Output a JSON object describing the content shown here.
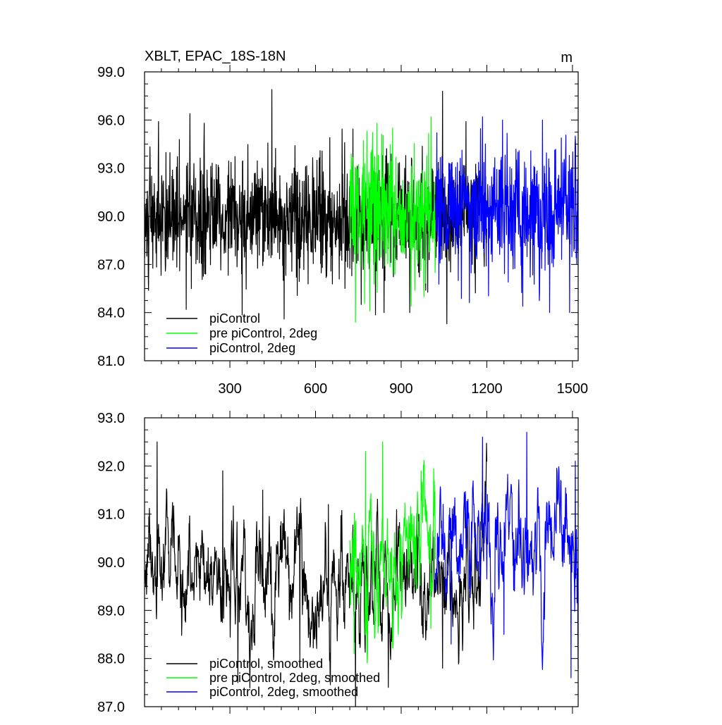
{
  "chart_data": [
    {
      "type": "line",
      "title": "XBLT, EPAC_18S-18N",
      "units": "m",
      "xlabel": "",
      "ylabel": "",
      "xlim": [
        1,
        1520
      ],
      "ylim": [
        81.0,
        99.0
      ],
      "xticks": [
        300,
        600,
        900,
        1200,
        1500
      ],
      "xtick_labels": [
        "300",
        "600",
        "900",
        "1200",
        "1500"
      ],
      "yticks": [
        81.0,
        84.0,
        87.0,
        90.0,
        93.0,
        96.0,
        99.0
      ],
      "ytick_labels": [
        "81.0",
        "84.0",
        "87.0",
        "90.0",
        "93.0",
        "96.0",
        "99.0"
      ],
      "grid": false,
      "legend_position": "bottom-left",
      "series": [
        {
          "name": "piControl",
          "color": "#000000",
          "x_range": [
            1,
            1200
          ],
          "mean": 89.9,
          "std": 1.8,
          "peaks": [
            [
              50,
              95.9
            ],
            [
              160,
              96.4
            ],
            [
              210,
              95.8
            ],
            [
              447,
              97.9
            ],
            [
              1045,
              97.8
            ],
            [
              650,
              94.9
            ]
          ],
          "troughs": [
            [
              147,
              84.2
            ],
            [
              490,
              83.6
            ],
            [
              1060,
              83.3
            ],
            [
              840,
              84.0
            ],
            [
              930,
              84.0
            ],
            [
              760,
              84.5
            ]
          ]
        },
        {
          "name": "pre piControl, 2deg",
          "color": "#00ff00",
          "x_range": [
            720,
            1020
          ],
          "mean": 90.1,
          "std": 2.0,
          "peaks": [
            [
              815,
              95.8
            ],
            [
              1005,
              96.2
            ],
            [
              870,
              95.5
            ],
            [
              780,
              95.3
            ]
          ],
          "troughs": [
            [
              740,
              83.4
            ],
            [
              790,
              84.1
            ],
            [
              935,
              84.4
            ],
            [
              980,
              85.0
            ]
          ]
        },
        {
          "name": "piControl, 2deg",
          "color": "#0000ff",
          "x_range": [
            1020,
            1520
          ],
          "mean": 90.4,
          "std": 2.0,
          "peaks": [
            [
              1025,
              95.2
            ],
            [
              1185,
              96.2
            ],
            [
              1255,
              96.0
            ],
            [
              1395,
              96.0
            ],
            [
              1510,
              95.0
            ]
          ],
          "troughs": [
            [
              1420,
              84.0
            ],
            [
              1490,
              84.0
            ],
            [
              1100,
              86.0
            ],
            [
              1275,
              85.9
            ]
          ]
        }
      ]
    },
    {
      "type": "line",
      "title": "",
      "units": "",
      "xlabel": "",
      "ylabel": "",
      "xlim": [
        1,
        1520
      ],
      "ylim": [
        87.0,
        93.0
      ],
      "xticks": [
        300,
        600,
        900,
        1200,
        1500
      ],
      "yticks": [
        87.0,
        88.0,
        89.0,
        90.0,
        91.0,
        92.0,
        93.0
      ],
      "ytick_labels": [
        "87.0",
        "88.0",
        "89.0",
        "90.0",
        "91.0",
        "92.0",
        "93.0"
      ],
      "grid": false,
      "legend_position": "bottom-left",
      "series": [
        {
          "name": "piControl, smoothed",
          "color": "#000000",
          "x_range": [
            1,
            1200
          ],
          "mean": 89.7,
          "std": 0.65,
          "peaks": [
            [
              45,
              92.5
            ],
            [
              275,
              91.9
            ],
            [
              415,
              91.5
            ],
            [
              645,
              91.2
            ]
          ],
          "troughs": [
            [
              328,
              87.5
            ],
            [
              740,
              87.0
            ],
            [
              855,
              87.4
            ],
            [
              1045,
              87.8
            ],
            [
              545,
              87.9
            ]
          ]
        },
        {
          "name": "pre piControl, 2deg, smoothed",
          "color": "#00ff00",
          "x_range": [
            720,
            1020
          ],
          "mean": 89.9,
          "std": 0.8,
          "peaks": [
            [
              775,
              92.3
            ],
            [
              835,
              92.5
            ],
            [
              970,
              91.9
            ]
          ],
          "troughs": [
            [
              735,
              88.1
            ],
            [
              890,
              88.5
            ]
          ]
        },
        {
          "name": "piControl, 2deg, smoothed",
          "color": "#0000ff",
          "x_range": [
            1020,
            1520
          ],
          "mean": 90.3,
          "std": 0.75,
          "peaks": [
            [
              1185,
              92.6
            ],
            [
              1340,
              92.7
            ],
            [
              1510,
              92.1
            ]
          ],
          "troughs": [
            [
              1495,
              87.6
            ],
            [
              1260,
              88.5
            ],
            [
              1075,
              88.3
            ]
          ]
        }
      ]
    }
  ]
}
